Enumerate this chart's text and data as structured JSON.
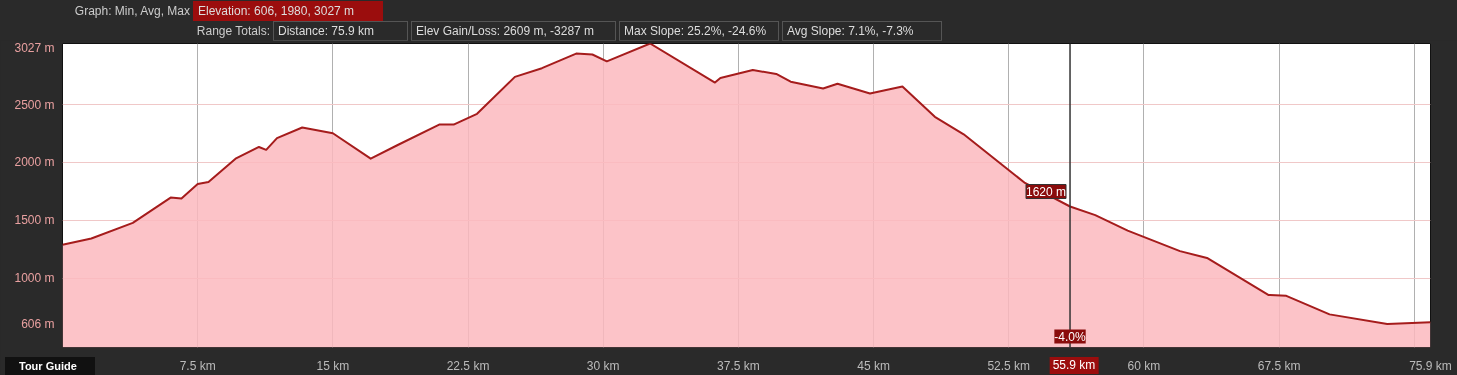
{
  "chart_data": {
    "type": "area",
    "annotations": [
      "Graph: Min, Avg, Max",
      "Elevation: 606, 1980, 3027 m",
      "Range Totals:",
      "Distance: 75.9 km",
      "Elev Gain/Loss: 2609 m, -3287 m",
      "Max Slope: 25.2%, -24.6%",
      "Avg Slope: 7.1%, -7.3%",
      {
        "text": "1620 m",
        "x": 55.9,
        "y": 1620
      },
      "-4.0%",
      "Tour Guide"
    ],
    "x": [
      0,
      1.6,
      3.9,
      6.0,
      6.6,
      7.5,
      8.1,
      9.6,
      10.9,
      11.3,
      11.9,
      13.3,
      15.0,
      17.1,
      18.6,
      20.9,
      21.7,
      23.0,
      25.1,
      26.6,
      28.5,
      29.4,
      30.2,
      32.6,
      36.2,
      36.5,
      38.3,
      39.6,
      40.4,
      42.2,
      43.0,
      44.8,
      46.6,
      48.4,
      50.0,
      53.4,
      55.9,
      57.3,
      59.1,
      62.0,
      63.5,
      66.9,
      67.9,
      70.3,
      73.5,
      75.9
    ],
    "series": [
      {
        "color": "#a51c1c",
        "values": [
          1290,
          1344,
          1479,
          1697,
          1690,
          1815,
          1832,
          2033,
          2134,
          2109,
          2210,
          2302,
          2252,
          2033,
          2151,
          2327,
          2327,
          2420,
          2739,
          2814,
          2940,
          2932,
          2873,
          3027,
          2690,
          2730,
          2798,
          2764,
          2697,
          2638,
          2680,
          2596,
          2655,
          2394,
          2243,
          1823,
          1620,
          1546,
          1412,
          1235,
          1176,
          857,
          849,
          689,
          606,
          622
        ]
      }
    ],
    "xlim": [
      0,
      75.9
    ],
    "ylim": [
      403,
      3027
    ],
    "xticks": [
      {
        "value": 7.5,
        "label": "7.5 km"
      },
      {
        "value": 15,
        "label": "15 km"
      },
      {
        "value": 22.5,
        "label": "22.5 km"
      },
      {
        "value": 30,
        "label": "30 km"
      },
      {
        "value": 37.5,
        "label": "37.5 km"
      },
      {
        "value": 45,
        "label": "45 km"
      },
      {
        "value": 52.5,
        "label": "52.5 km"
      },
      {
        "value": 60,
        "label": "60 km"
      },
      {
        "value": 67.5,
        "label": "67.5 km"
      },
      {
        "value": 75,
        "label": null
      },
      {
        "value": 75.9,
        "label": "75.9 km"
      }
    ],
    "yticks": [
      {
        "value": 606,
        "label": "606 m"
      },
      {
        "value": 1000,
        "label": "1000 m"
      },
      {
        "value": 1500,
        "label": "1500 m"
      },
      {
        "value": 2000,
        "label": "2000 m"
      },
      {
        "value": 2500,
        "label": "2500 m"
      },
      {
        "value": 3027,
        "label": "3027 m"
      }
    ],
    "grid": true,
    "ref_lines": [
      {
        "axis": "x",
        "value": 55.9,
        "label": "55.9 km",
        "color": "#333333"
      }
    ]
  }
}
